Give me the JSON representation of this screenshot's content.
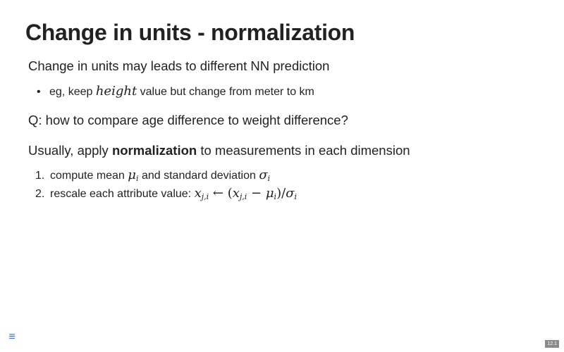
{
  "slide": {
    "title": "Change in units - normalization",
    "intro": "Change in units may leads to different NN prediction",
    "bullet": {
      "prefix": "eg, keep ",
      "math_var": "height",
      "suffix": " value but change from meter to km"
    },
    "question": "Q: how to compare age difference to weight difference?",
    "usually": {
      "prefix": "Usually, apply ",
      "bold": "normalization",
      "suffix": " to measurements in each dimension"
    },
    "steps": [
      {
        "number": "1.",
        "text_a": "compute mean ",
        "mu": "μ",
        "mu_sub": "i",
        "text_b": " and standard deviation ",
        "sigma": "σ",
        "sigma_sub": "i"
      },
      {
        "number": "2.",
        "text_a": "rescale each attribute value: ",
        "x": "x",
        "x_sub": "j,i",
        "arrow": " ← ",
        "lparen": "(",
        "x2": "x",
        "x2_sub": "j,i",
        "minus": " − ",
        "mu": "μ",
        "mu_sub": "i",
        "rparen": ")",
        "slash": "/",
        "sigma": "σ",
        "sigma_sub": "i"
      }
    ]
  },
  "footer": {
    "menu_icon": "menu-icon",
    "menu_glyph": "≡",
    "slide_number": "12.1"
  },
  "colors": {
    "text": "#222222",
    "menu_icon": "#2a76dd",
    "slide_number_bg": "#8a8a8a"
  }
}
